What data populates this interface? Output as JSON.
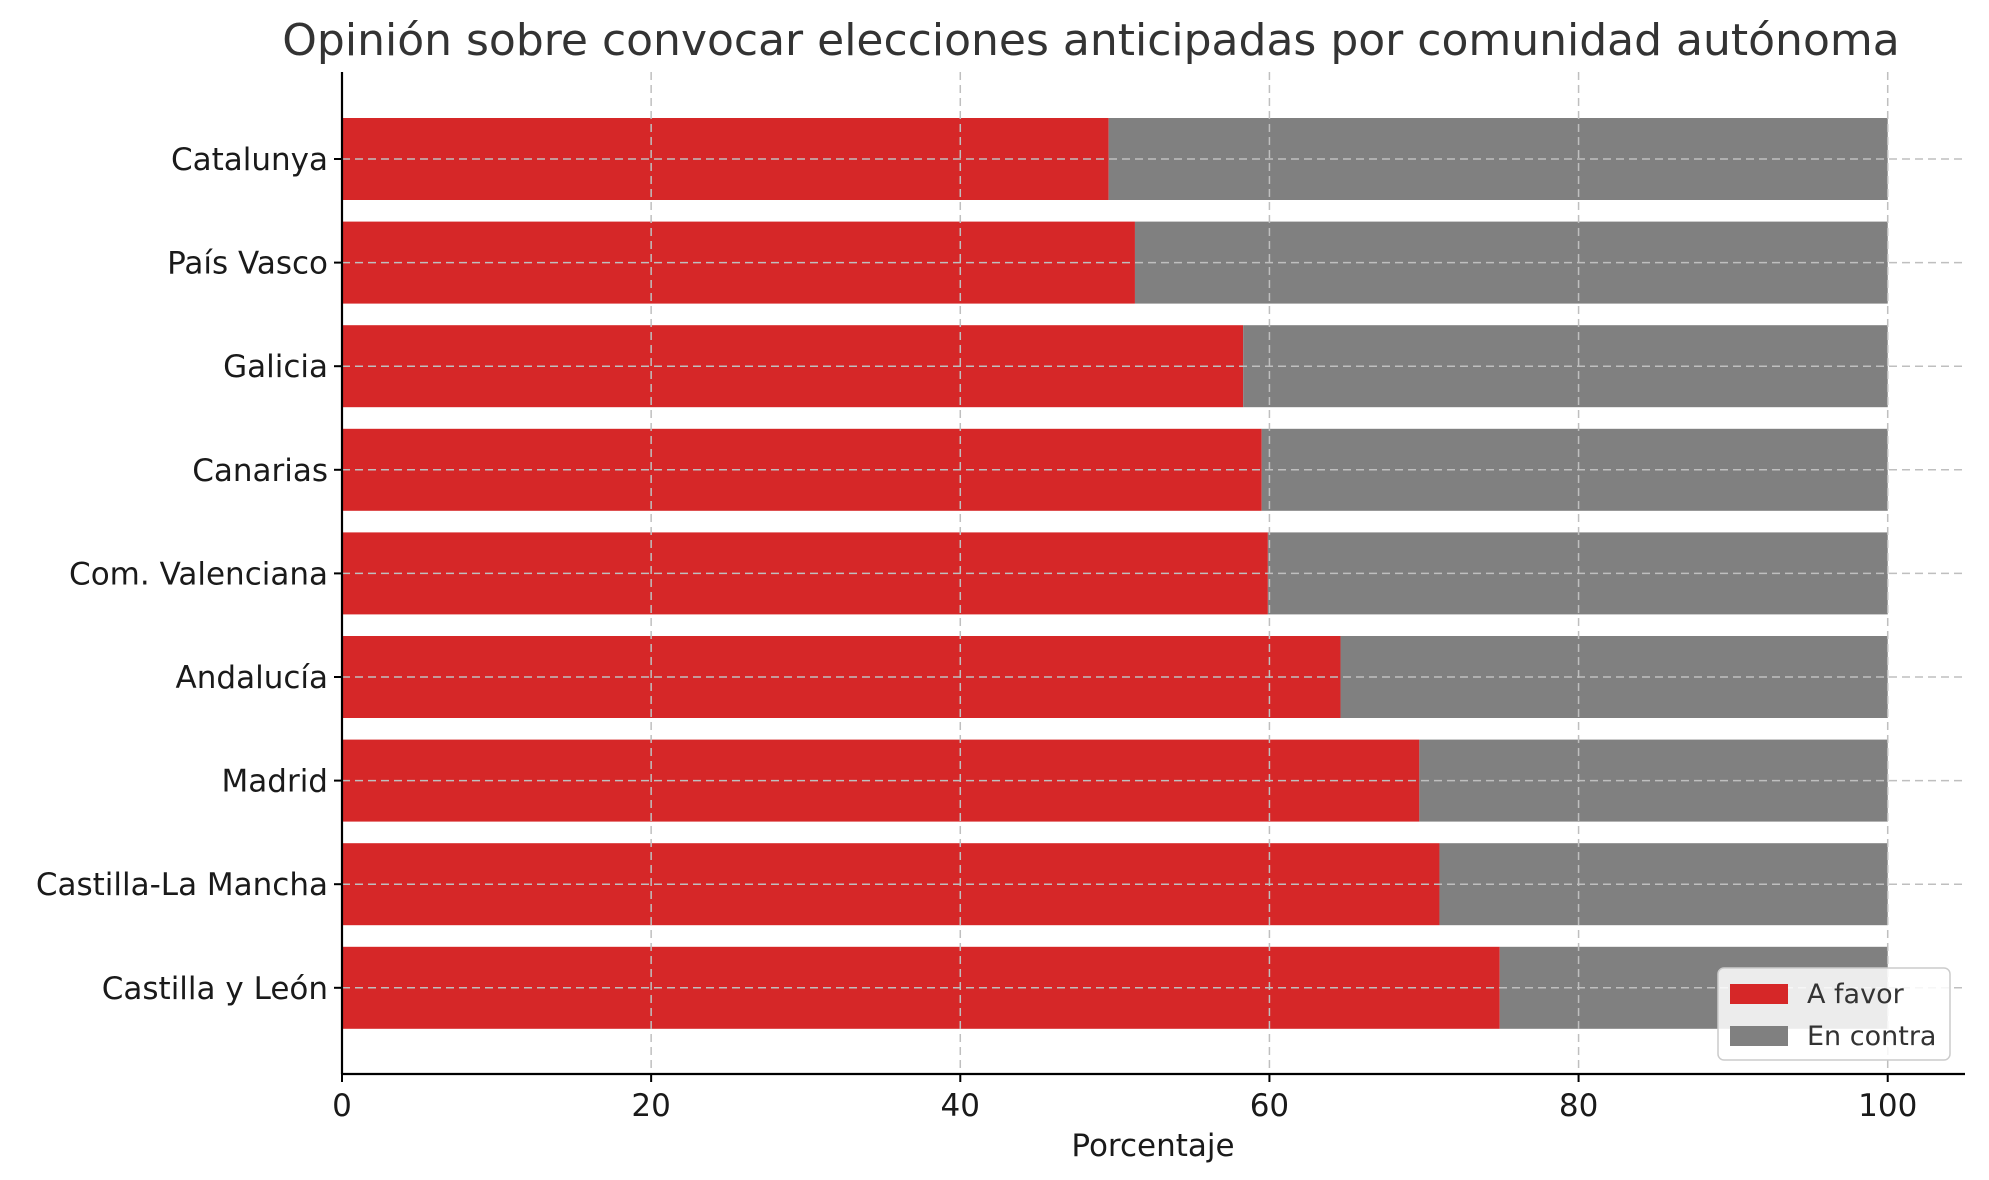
{
  "chart_data": {
    "type": "bar",
    "orientation": "horizontal",
    "stacked": true,
    "title": "Opinión sobre convocar elecciones anticipadas por comunidad autónoma",
    "xlabel": "Porcentaje",
    "ylabel": "",
    "xlim": [
      0,
      105
    ],
    "xticks": [
      0,
      20,
      40,
      60,
      80,
      100
    ],
    "grid": true,
    "legend_position": "bottom-right",
    "categories": [
      "Catalunya",
      "País Vasco",
      "Galicia",
      "Canarias",
      "Com. Valenciana",
      "Andalucía",
      "Madrid",
      "Castilla-La Mancha",
      "Castilla y León"
    ],
    "series": [
      {
        "name": "A favor",
        "color": "#d62728",
        "values": [
          49.6,
          51.3,
          58.3,
          59.5,
          59.9,
          64.6,
          69.7,
          71.0,
          74.9
        ]
      },
      {
        "name": "En contra",
        "color": "#808080",
        "values": [
          50.4,
          48.7,
          41.7,
          40.5,
          40.1,
          35.4,
          30.3,
          29.0,
          25.1
        ]
      }
    ]
  }
}
